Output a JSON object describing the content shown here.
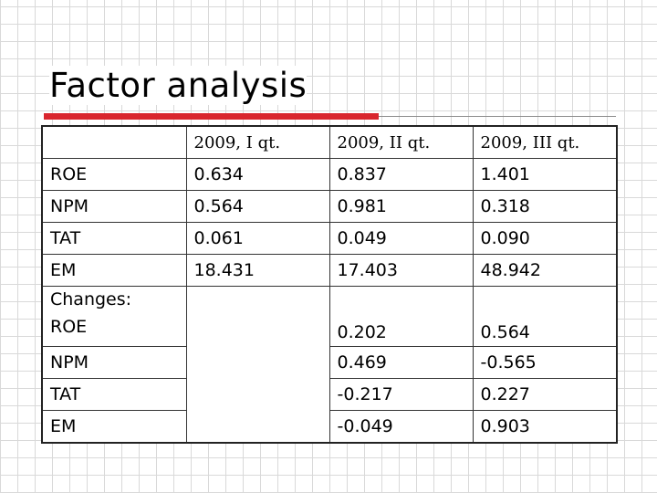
{
  "header": {
    "title": "Factor analysis"
  },
  "table": {
    "columns": [
      "2009, I qt.",
      "2009, II qt.",
      "2009, III qt."
    ],
    "rows": [
      {
        "label": "ROE",
        "values": [
          "0.634",
          "0.837",
          "1.401"
        ]
      },
      {
        "label": "NPM",
        "values": [
          "0.564",
          "0.981",
          "0.318"
        ]
      },
      {
        "label": "TAT",
        "values": [
          "0.061",
          "0.049",
          "0.090"
        ]
      },
      {
        "label": "EM",
        "values": [
          "18.431",
          "17.403",
          "48.942"
        ]
      }
    ],
    "changes_label": "Changes:",
    "changes": [
      {
        "label": "ROE",
        "values": [
          "0.202",
          "0.564"
        ]
      },
      {
        "label": "NPM",
        "values": [
          "0.469",
          "-0.565"
        ]
      },
      {
        "label": "TAT",
        "values": [
          "-0.217",
          "0.227"
        ]
      },
      {
        "label": "EM",
        "values": [
          "-0.049",
          "0.903"
        ]
      }
    ]
  }
}
